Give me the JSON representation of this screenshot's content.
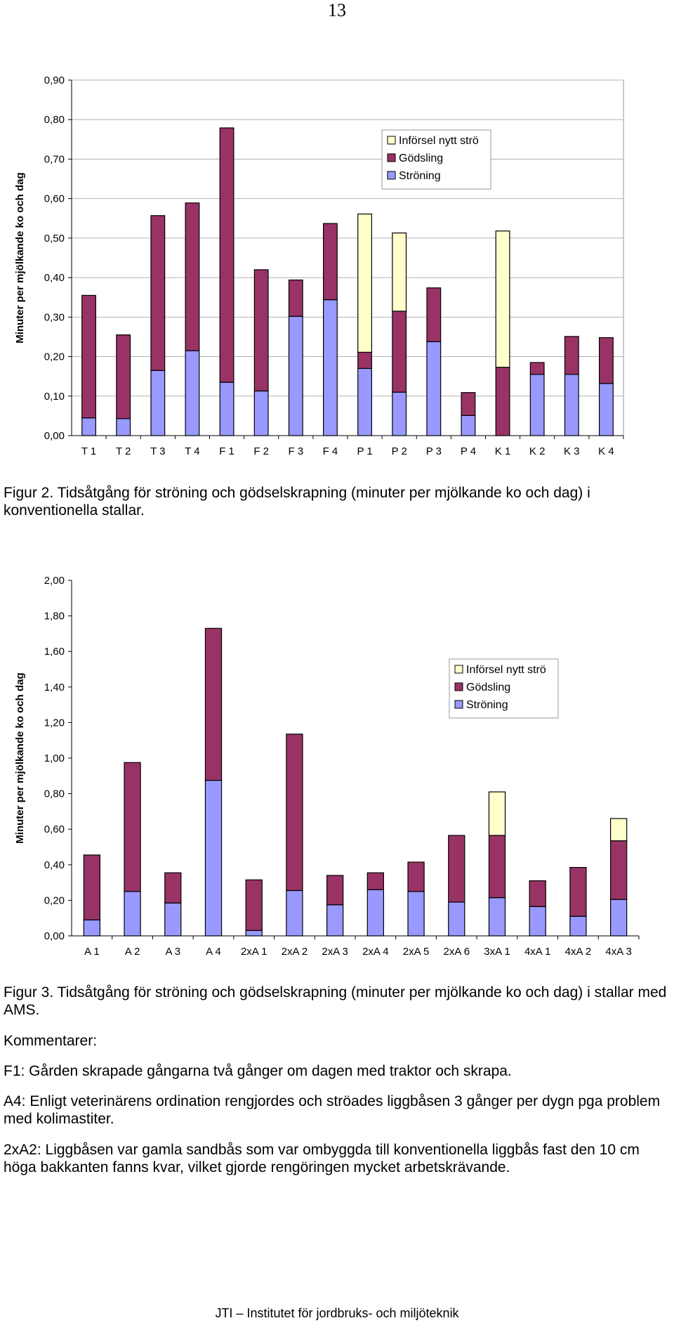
{
  "page_number": "13",
  "colors": {
    "infors": "#ffffcc",
    "godsling": "#993366",
    "stroning": "#9999ff",
    "grid": "#b3b3b3"
  },
  "chart_data": [
    {
      "type": "bar",
      "stacked": true,
      "ylabel": "Minuter per mjölkande ko och dag",
      "xlabel": "",
      "ylim": [
        0,
        0.9
      ],
      "yticks": [
        0,
        0.1,
        0.2,
        0.3,
        0.4,
        0.5,
        0.6,
        0.7,
        0.8,
        0.9
      ],
      "ytick_labels": [
        "0,00",
        "0,10",
        "0,20",
        "0,30",
        "0,40",
        "0,50",
        "0,60",
        "0,70",
        "0,80",
        "0,90"
      ],
      "grid": true,
      "legend_position": "top-right",
      "categories": [
        "T 1",
        "T 2",
        "T 3",
        "T 4",
        "F 1",
        "F 2",
        "F 3",
        "F 4",
        "P 1",
        "P 2",
        "P 3",
        "P 4",
        "K 1",
        "K 2",
        "K 3",
        "K 4"
      ],
      "series": [
        {
          "name": "Ströning",
          "color": "#9999ff",
          "values": [
            0.045,
            0.043,
            0.165,
            0.215,
            0.135,
            0.113,
            0.302,
            0.344,
            0.17,
            0.11,
            0.238,
            0.051,
            0,
            0.155,
            0.155,
            0.132
          ]
        },
        {
          "name": "Gödsling",
          "color": "#993366",
          "values": [
            0.31,
            0.212,
            0.392,
            0.374,
            0.644,
            0.307,
            0.092,
            0.193,
            0.041,
            0.205,
            0.136,
            0.058,
            0.173,
            0.03,
            0.096,
            0.116
          ]
        },
        {
          "name": "Införsel nytt strö",
          "color": "#ffffcc",
          "values": [
            0,
            0,
            0,
            0,
            0,
            0,
            0,
            0,
            0.35,
            0.198,
            0,
            0,
            0.345,
            0,
            0,
            0
          ]
        }
      ]
    },
    {
      "type": "bar",
      "stacked": true,
      "ylabel": "Minuter per mjölkande ko och dag",
      "xlabel": "",
      "ylim": [
        0,
        2.0
      ],
      "yticks": [
        0,
        0.2,
        0.4,
        0.6,
        0.8,
        1.0,
        1.2,
        1.4,
        1.6,
        1.8,
        2.0
      ],
      "ytick_labels": [
        "0,00",
        "0,20",
        "0,40",
        "0,60",
        "0,80",
        "1,00",
        "1,20",
        "1,40",
        "1,60",
        "1,80",
        "2,00"
      ],
      "grid": false,
      "legend_position": "top-right",
      "categories": [
        "A 1",
        "A 2",
        "A 3",
        "A 4",
        "2xA 1",
        "2xA 2",
        "2xA 3",
        "2xA 4",
        "2xA 5",
        "2xA 6",
        "3xA 1",
        "4xA 1",
        "4xA 2",
        "4xA 3"
      ],
      "series": [
        {
          "name": "Ströning",
          "color": "#9999ff",
          "values": [
            0.09,
            0.25,
            0.185,
            0.875,
            0.03,
            0.255,
            0.175,
            0.26,
            0.25,
            0.19,
            0.215,
            0.165,
            0.11,
            0.205
          ]
        },
        {
          "name": "Gödsling",
          "color": "#993366",
          "values": [
            0.365,
            0.725,
            0.17,
            0.855,
            0.285,
            0.88,
            0.165,
            0.095,
            0.165,
            0.375,
            0.35,
            0.145,
            0.275,
            0.33
          ]
        },
        {
          "name": "Införsel nytt strö",
          "color": "#ffffcc",
          "values": [
            0,
            0,
            0,
            0,
            0,
            0,
            0,
            0,
            0,
            0,
            0.245,
            0,
            0,
            0.125
          ]
        }
      ]
    }
  ],
  "captions": {
    "fig2": "Figur 2. Tidsåtgång för ströning och gödselskrapning (minuter per mjölkande ko och dag) i konventionella stallar.",
    "fig3": "Figur 3. Tidsåtgång för ströning och gödselskrapning (minuter per mjölkande ko och dag) i stallar med AMS."
  },
  "comments": {
    "heading": "Kommentarer:",
    "f1": "F1: Gården skrapade gångarna två gånger om dagen med traktor och skrapa.",
    "a4": "A4: Enligt veterinärens ordination rengjordes och ströades liggbåsen 3 gånger per dygn pga problem med kolimastiter.",
    "xa2": "2xA2: Liggbåsen var gamla sandbås som var ombyggda till konventionella liggbås fast den 10 cm höga bakkanten fanns kvar, vilket gjorde rengöringen mycket arbetskrävande."
  },
  "footer": "JTI – Institutet för jordbruks- och miljöteknik"
}
